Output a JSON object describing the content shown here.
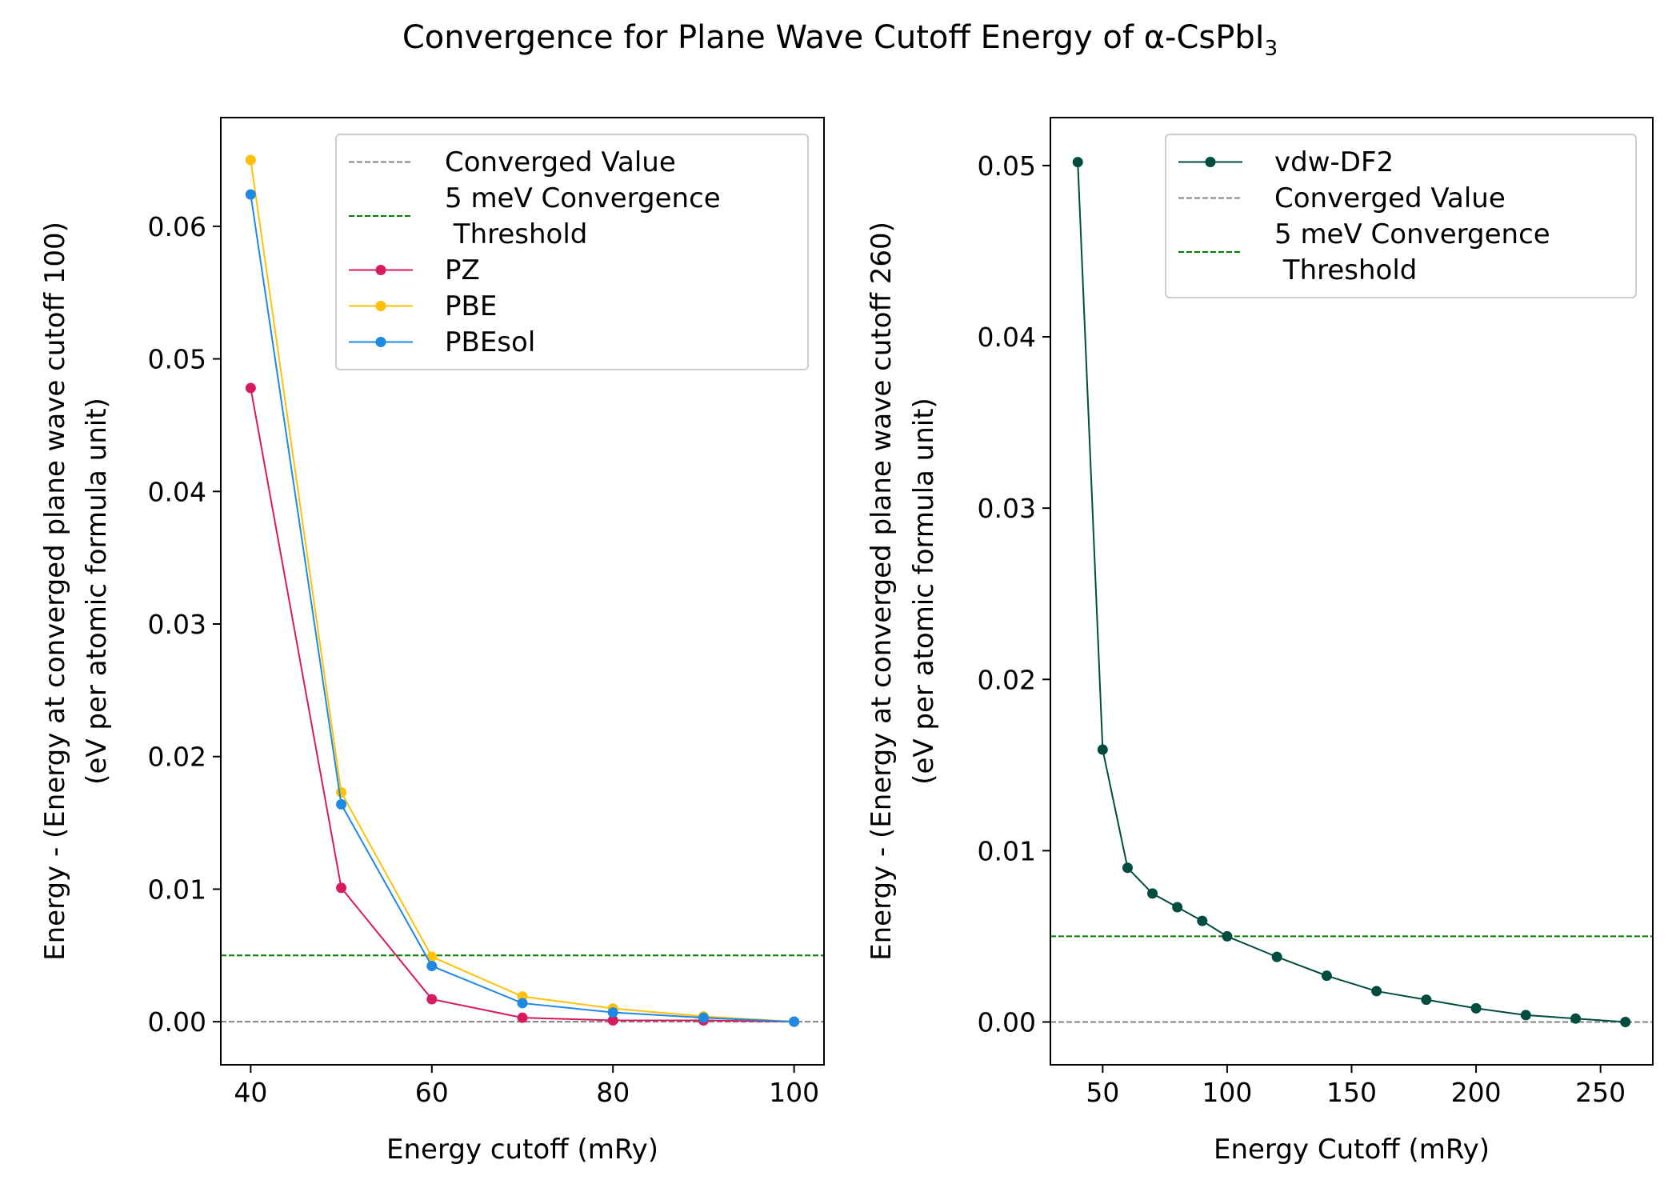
{
  "figure": {
    "title": "Convergence for Plane Wave Cutoff Energy of α-CsPbI",
    "title_subscript": "3"
  },
  "chart_data": [
    {
      "type": "line",
      "xlabel": "Energy cutoff (mRy)",
      "ylabel_line1": "Energy - (Energy at converged plane wave cutoff 100)",
      "ylabel_line2": "(eV per atomic formula unit)",
      "xlim": [
        36.7,
        103.3
      ],
      "ylim": [
        -0.00325,
        0.0682
      ],
      "xticks": [
        40,
        60,
        80,
        100
      ],
      "yticks": [
        0.0,
        0.01,
        0.02,
        0.03,
        0.04,
        0.05,
        0.06
      ],
      "ytick_labels": [
        "0.00",
        "0.01",
        "0.02",
        "0.03",
        "0.04",
        "0.05",
        "0.06"
      ],
      "reference_lines": [
        {
          "name": "Converged Value",
          "y": 0.0,
          "color": "#808080",
          "style": "dashed"
        },
        {
          "name": "5 meV Convergence\n Threshold",
          "y": 0.005,
          "color": "#008000",
          "style": "dashed"
        }
      ],
      "x": [
        40,
        50,
        60,
        70,
        80,
        90,
        100
      ],
      "series": [
        {
          "name": "PZ",
          "color": "#D81B60",
          "values": [
            0.0478,
            0.0101,
            0.0017,
            0.0003,
            0.0001,
            0.0001,
            0.0
          ]
        },
        {
          "name": "PBE",
          "color": "#FFC107",
          "values": [
            0.065,
            0.0173,
            0.0049,
            0.0019,
            0.001,
            0.0004,
            0.0
          ]
        },
        {
          "name": "PBEsol",
          "color": "#1E88E5",
          "values": [
            0.0624,
            0.0164,
            0.0042,
            0.0014,
            0.0007,
            0.0003,
            0.0
          ]
        }
      ],
      "legend": [
        "Converged Value",
        "5 meV Convergence\n Threshold",
        "PZ",
        "PBE",
        "PBEsol"
      ],
      "legend_position": "upper right",
      "grid": false
    },
    {
      "type": "line",
      "xlabel": "Energy Cutoff (mRy)",
      "ylabel_line1": "Energy - (Energy at converged plane wave cutoff 260)",
      "ylabel_line2": "(eV per atomic formula unit)",
      "xlim": [
        29,
        271
      ],
      "ylim": [
        -0.0025,
        0.0528
      ],
      "xticks": [
        50,
        100,
        150,
        200,
        250
      ],
      "yticks": [
        0.0,
        0.01,
        0.02,
        0.03,
        0.04,
        0.05
      ],
      "ytick_labels": [
        "0.00",
        "0.01",
        "0.02",
        "0.03",
        "0.04",
        "0.05"
      ],
      "reference_lines": [
        {
          "name": "Converged Value",
          "y": 0.0,
          "color": "#808080",
          "style": "dashed"
        },
        {
          "name": "5 meV Convergence\n Threshold",
          "y": 0.005,
          "color": "#008000",
          "style": "dashed"
        }
      ],
      "x": [
        40,
        50,
        60,
        70,
        80,
        90,
        100,
        120,
        140,
        160,
        180,
        200,
        220,
        240,
        260
      ],
      "series": [
        {
          "name": "vdw-DF2",
          "color": "#004D40",
          "values": [
            0.0502,
            0.0159,
            0.009,
            0.0075,
            0.0067,
            0.0059,
            0.005,
            0.0038,
            0.0027,
            0.0018,
            0.0013,
            0.0008,
            0.0004,
            0.0002,
            0.0
          ]
        }
      ],
      "legend": [
        "vdw-DF2",
        "Converged Value",
        "5 meV Convergence\n Threshold"
      ],
      "legend_position": "upper right",
      "grid": false
    }
  ]
}
